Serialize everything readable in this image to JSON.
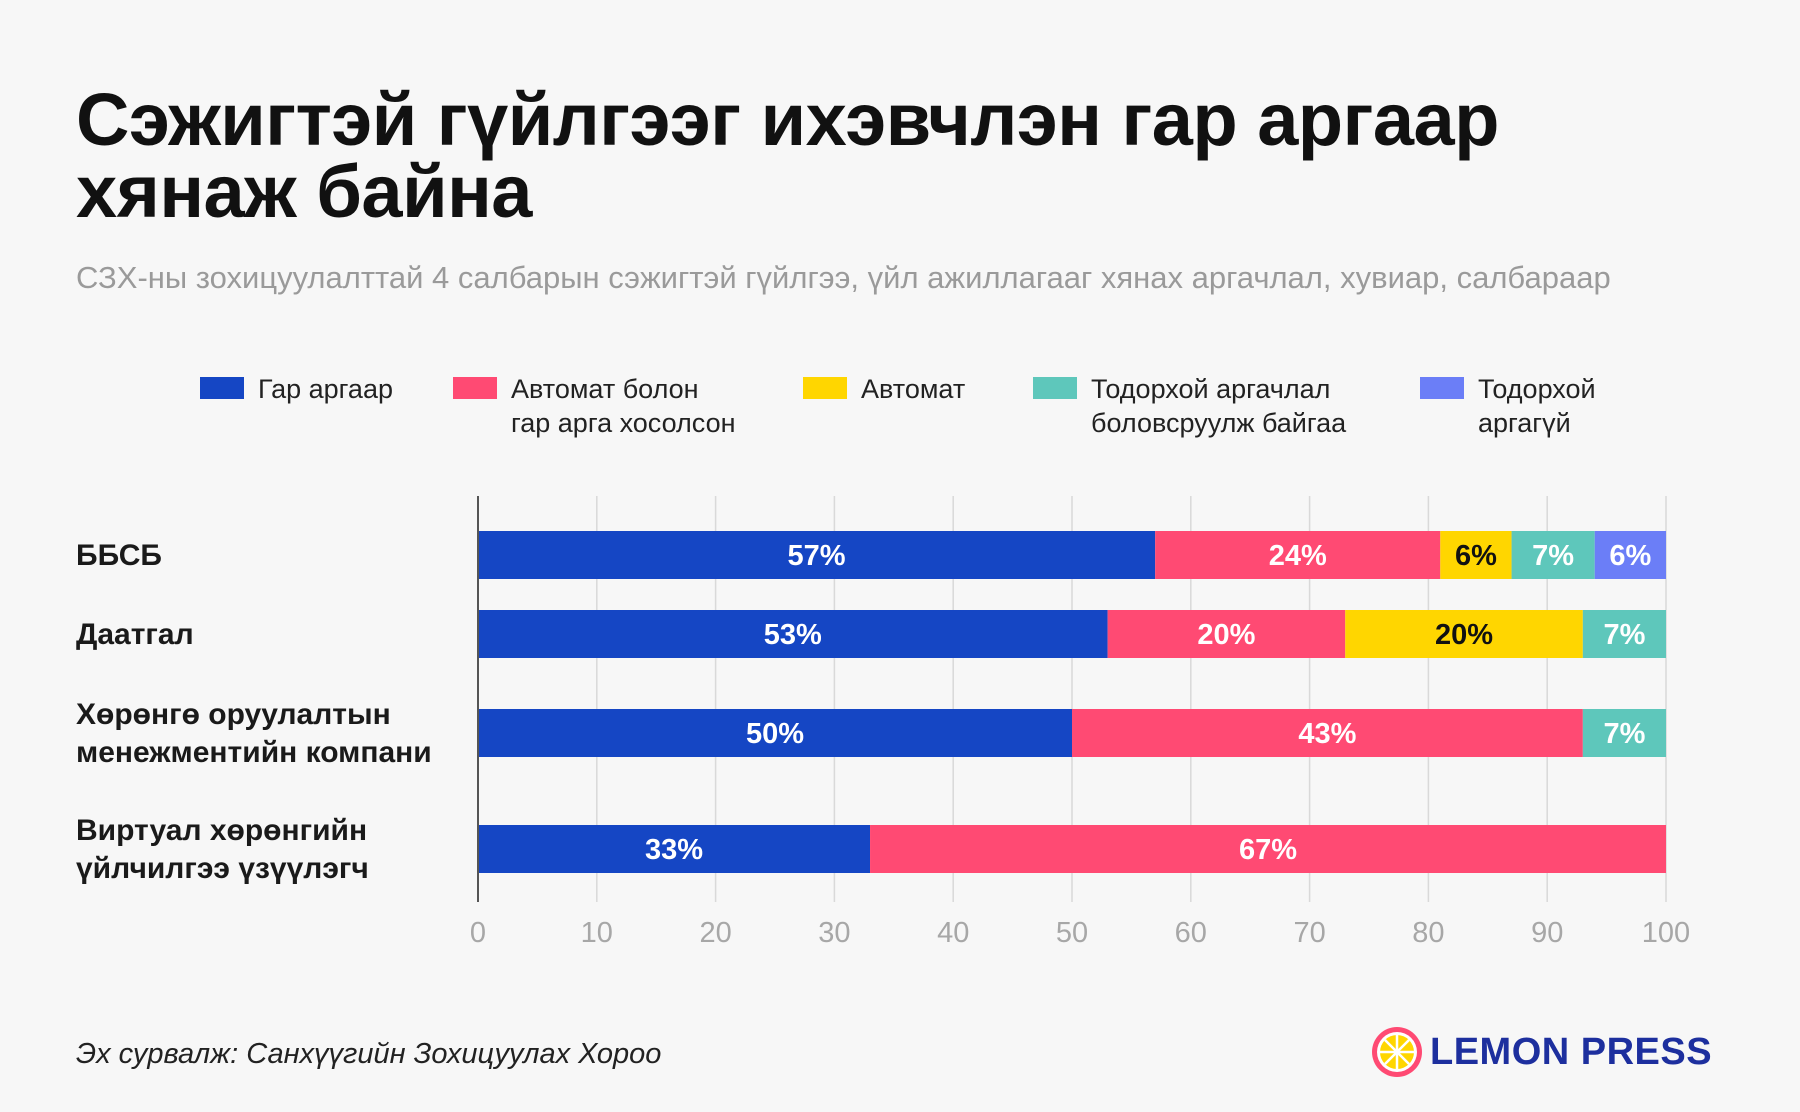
{
  "title": "Сэжигтэй гүйлгээг ихэвчлэн гар аргаар хянаж байна",
  "subtitle": "СЗХ-ны зохицуулалттай 4 салбарын сэжигтэй гүйлгээ, үйл ажиллагааг хянах аргачлал, хувиар, салбараар",
  "legend": [
    {
      "label": "Гар аргаар",
      "color": "#1546c4"
    },
    {
      "label": "Автомат болон\nгар арга хосолсон",
      "color": "#ff4a73"
    },
    {
      "label": "Автомат",
      "color": "#ffd600"
    },
    {
      "label": "Тодорхой аргачлал\nболовсруулж байгаа",
      "color": "#5ec7bb"
    },
    {
      "label": "Тодорхой\nаргагүй",
      "color": "#6b7ef7"
    }
  ],
  "chart_data": {
    "type": "bar",
    "orientation": "horizontal",
    "stacked": true,
    "categories": [
      "ББСБ",
      "Даатгал",
      "Хөрөнгө оруулалтын\nменежментийн компани",
      "Виртуал хөрөнгийн\nүйлчилгээ үзүүлэгч"
    ],
    "series": [
      {
        "name": "Гар аргаар",
        "color": "#1546c4",
        "label_color": "#ffffff",
        "values": [
          57,
          53,
          50,
          33
        ],
        "labels": [
          "57%",
          "53%",
          "50%",
          "33%"
        ]
      },
      {
        "name": "Автомат болон гар арга хосолсон",
        "color": "#ff4a73",
        "label_color": "#ffffff",
        "values": [
          24,
          20,
          43,
          67
        ],
        "labels": [
          "24%",
          "20%",
          "43%",
          "67%"
        ]
      },
      {
        "name": "Автомат",
        "color": "#ffd600",
        "label_color": "#111111",
        "values": [
          6,
          20,
          0,
          0
        ],
        "labels": [
          "6%",
          "20%",
          "",
          ""
        ]
      },
      {
        "name": "Тодорхой аргачлал боловсруулж байгаа",
        "color": "#5ec7bb",
        "label_color": "#ffffff",
        "values": [
          7,
          7,
          7,
          0
        ],
        "labels": [
          "7%",
          "7%",
          "7%",
          ""
        ]
      },
      {
        "name": "Тодорхой аргагүй",
        "color": "#6b7ef7",
        "label_color": "#ffffff",
        "values": [
          6,
          0,
          0,
          0
        ],
        "labels": [
          "6%",
          "",
          "",
          ""
        ]
      }
    ],
    "xlim": [
      0,
      100
    ],
    "xticks": [
      0,
      10,
      20,
      30,
      40,
      50,
      60,
      70,
      80,
      90,
      100
    ],
    "grid": true
  },
  "source": "Эх сурвалж: Санхүүгийн Зохицуулах Хороо",
  "logo": {
    "text": "LEMON PRESS",
    "icon": "lemon-icon"
  }
}
